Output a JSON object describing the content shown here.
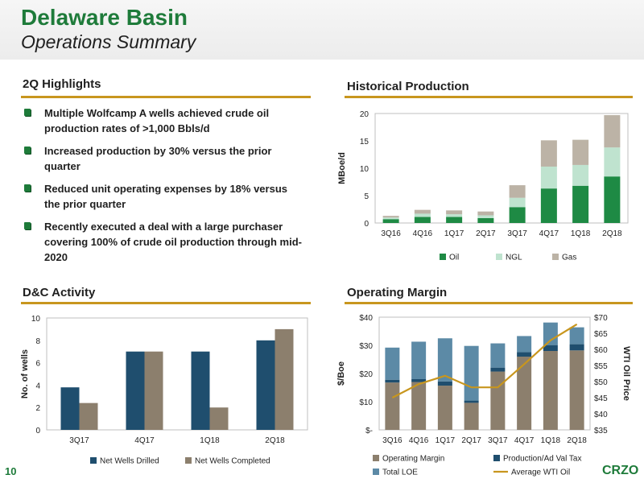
{
  "header": {
    "title": "Delaware Basin",
    "subtitle": "Operations Summary"
  },
  "highlights": {
    "title": "2Q Highlights",
    "items": [
      "Multiple Wolfcamp A wells achieved crude oil production rates of >1,000 Bbls/d",
      "Increased production by 30% versus the prior quarter",
      "Reduced unit operating expenses by 18% versus the prior quarter",
      "Recently executed a deal with a large purchaser covering 100% of crude oil production through mid-2020"
    ]
  },
  "footer": {
    "page_number": "10",
    "logo": "CRZO"
  },
  "colors": {
    "green": "#1e7b3a",
    "gold": "#c8961e",
    "navy": "#1f4e6e",
    "tan": "#8c7f6d"
  },
  "chart_data": [
    {
      "id": "historical-production",
      "type": "bar",
      "stacked": true,
      "title": "Historical Production",
      "ylabel": "MBoe/d",
      "ylim": [
        0,
        20
      ],
      "yticks": [
        "0",
        "5",
        "10",
        "15",
        "20"
      ],
      "categories": [
        "3Q16",
        "4Q16",
        "1Q17",
        "2Q17",
        "3Q17",
        "4Q17",
        "1Q18",
        "2Q18"
      ],
      "series": [
        {
          "name": "Oil",
          "color": "#1e8a44",
          "values": [
            0.7,
            1.1,
            1.1,
            0.9,
            2.9,
            6.3,
            6.8,
            8.5
          ]
        },
        {
          "name": "NGL",
          "color": "#bfe3cf",
          "values": [
            0.3,
            0.6,
            0.5,
            0.5,
            1.7,
            4.0,
            3.8,
            5.3
          ]
        },
        {
          "name": "Gas",
          "color": "#bcb3a6",
          "values": [
            0.3,
            0.7,
            0.7,
            0.7,
            2.3,
            4.8,
            4.6,
            5.9
          ]
        }
      ],
      "legend": "bottom"
    },
    {
      "id": "dc-activity",
      "type": "bar",
      "title": "D&C Activity",
      "ylabel": "No. of wells",
      "ylim": [
        0,
        10
      ],
      "yticks": [
        "0",
        "2",
        "4",
        "6",
        "8",
        "10"
      ],
      "categories": [
        "3Q17",
        "4Q17",
        "1Q18",
        "2Q18"
      ],
      "series": [
        {
          "name": "Net Wells Drilled",
          "color": "#1f4e6e",
          "values": [
            3.8,
            7.0,
            7.0,
            8.0
          ]
        },
        {
          "name": "Net Wells Completed",
          "color": "#8c7f6d",
          "values": [
            2.4,
            7.0,
            2.0,
            9.0
          ]
        }
      ],
      "legend": "bottom"
    },
    {
      "id": "operating-margin",
      "type": "bar",
      "stacked": true,
      "title": "Operating Margin",
      "ylabel": "$/Boe",
      "y2label": "WTI Oil Price",
      "ylim": [
        0,
        40
      ],
      "y2lim": [
        35,
        70
      ],
      "yticks": [
        "$-",
        "$10",
        "$20",
        "$30",
        "$40"
      ],
      "y2ticks": [
        "$35",
        "$40",
        "$45",
        "$50",
        "$55",
        "$60",
        "$65",
        "$70"
      ],
      "categories": [
        "3Q16",
        "4Q16",
        "1Q17",
        "2Q17",
        "3Q17",
        "4Q17",
        "1Q18",
        "2Q18"
      ],
      "series": [
        {
          "name": "Operating Margin",
          "color": "#8c7f6d",
          "values": [
            16.8,
            17.0,
            15.7,
            9.6,
            20.7,
            26.0,
            28.0,
            28.2
          ]
        },
        {
          "name": "Production/Ad Val Tax",
          "color": "#1f4e6e",
          "values": [
            1.0,
            1.0,
            1.5,
            0.8,
            1.4,
            1.6,
            2.1,
            2.2
          ]
        },
        {
          "name": "Total LOE",
          "color": "#5c8aa6",
          "values": [
            11.4,
            13.3,
            15.3,
            19.4,
            8.6,
            5.7,
            8.0,
            6.0
          ]
        }
      ],
      "line_series": {
        "name": "Average WTI Oil",
        "color": "#c8961e",
        "axis": "right",
        "values": [
          45.0,
          49.2,
          51.8,
          48.2,
          48.2,
          55.4,
          62.8,
          67.8
        ]
      },
      "legend": "bottom"
    }
  ]
}
